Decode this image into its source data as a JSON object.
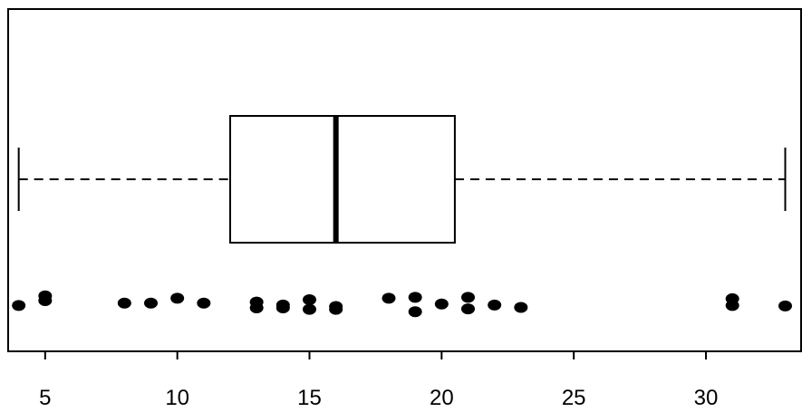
{
  "chart_data": {
    "type": "boxplot",
    "orientation": "horizontal",
    "title": "",
    "xlabel": "",
    "ylabel": "",
    "xlim": [
      3.6,
      33.6
    ],
    "x_ticks": [
      5,
      10,
      15,
      20,
      25,
      30
    ],
    "x_tick_labels": [
      "5",
      "10",
      "15",
      "20",
      "25",
      "30"
    ],
    "box": {
      "min": 4,
      "q1": 12,
      "median": 16,
      "q3": 20.5,
      "max": 33
    },
    "jitter_points": [
      {
        "x": 4,
        "y": 0.35
      },
      {
        "x": 5,
        "y": 0.55
      },
      {
        "x": 5,
        "y": 0.45
      },
      {
        "x": 8,
        "y": 0.4
      },
      {
        "x": 9,
        "y": 0.4
      },
      {
        "x": 10,
        "y": 0.5
      },
      {
        "x": 11,
        "y": 0.4
      },
      {
        "x": 13,
        "y": 0.42
      },
      {
        "x": 13,
        "y": 0.3
      },
      {
        "x": 14,
        "y": 0.36
      },
      {
        "x": 14,
        "y": 0.3
      },
      {
        "x": 15,
        "y": 0.47
      },
      {
        "x": 15,
        "y": 0.27
      },
      {
        "x": 16,
        "y": 0.33
      },
      {
        "x": 16,
        "y": 0.27
      },
      {
        "x": 18,
        "y": 0.5
      },
      {
        "x": 19,
        "y": 0.52
      },
      {
        "x": 19,
        "y": 0.22
      },
      {
        "x": 20,
        "y": 0.38
      },
      {
        "x": 21,
        "y": 0.52
      },
      {
        "x": 21,
        "y": 0.28
      },
      {
        "x": 22,
        "y": 0.36
      },
      {
        "x": 23,
        "y": 0.31
      },
      {
        "x": 31,
        "y": 0.49
      },
      {
        "x": 31,
        "y": 0.35
      },
      {
        "x": 33,
        "y": 0.34
      }
    ],
    "colors": {
      "box_stroke": "#000000",
      "points": "#000000",
      "background": "#ffffff"
    }
  }
}
